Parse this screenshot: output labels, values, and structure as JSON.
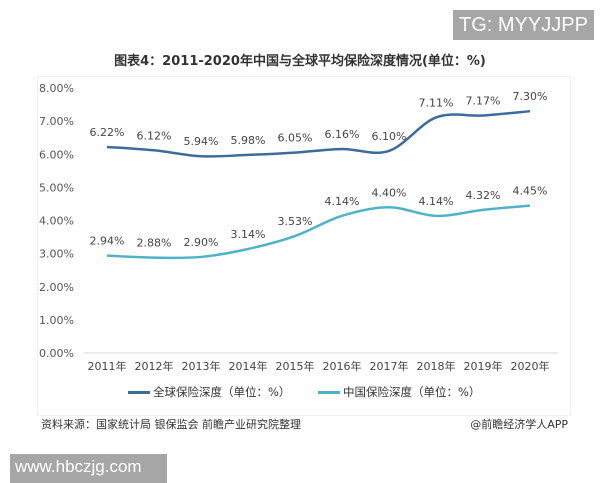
{
  "watermark_top": "TG: MYYJJPP",
  "watermark_bottom": "www.hbczjg.com",
  "source": "资料来源：国家统计局 银保监会 前瞻产业研究院整理",
  "brand": "@前瞻经济学人APP",
  "chart_data": {
    "type": "line",
    "title": "图表4：2011-2020年中国与全球平均保险深度情况(单位：%)",
    "categories": [
      "2011年",
      "2012年",
      "2013年",
      "2014年",
      "2015年",
      "2016年",
      "2017年",
      "2018年",
      "2019年",
      "2020年"
    ],
    "y_ticks": [
      "0.00%",
      "1.00%",
      "2.00%",
      "3.00%",
      "4.00%",
      "5.00%",
      "6.00%",
      "7.00%",
      "8.00%"
    ],
    "ylim": [
      0,
      8
    ],
    "grid": false,
    "legend_position": "bottom",
    "series": [
      {
        "name": "全球保险深度（单位：%）",
        "color": "#3b6c9c",
        "values": [
          6.22,
          6.12,
          5.94,
          5.98,
          6.05,
          6.16,
          6.1,
          7.11,
          7.17,
          7.3
        ],
        "labels": [
          "6.22%",
          "6.12%",
          "5.94%",
          "5.98%",
          "6.05%",
          "6.16%",
          "6.10%",
          "7.11%",
          "7.17%",
          "7.30%"
        ]
      },
      {
        "name": "中国保险深度（单位：%）",
        "color": "#4fb3c8",
        "values": [
          2.94,
          2.88,
          2.9,
          3.14,
          3.53,
          4.14,
          4.4,
          4.14,
          4.32,
          4.45
        ],
        "labels": [
          "2.94%",
          "2.88%",
          "2.90%",
          "3.14%",
          "3.53%",
          "4.14%",
          "4.40%",
          "4.14%",
          "4.32%",
          "4.45%"
        ]
      }
    ]
  }
}
